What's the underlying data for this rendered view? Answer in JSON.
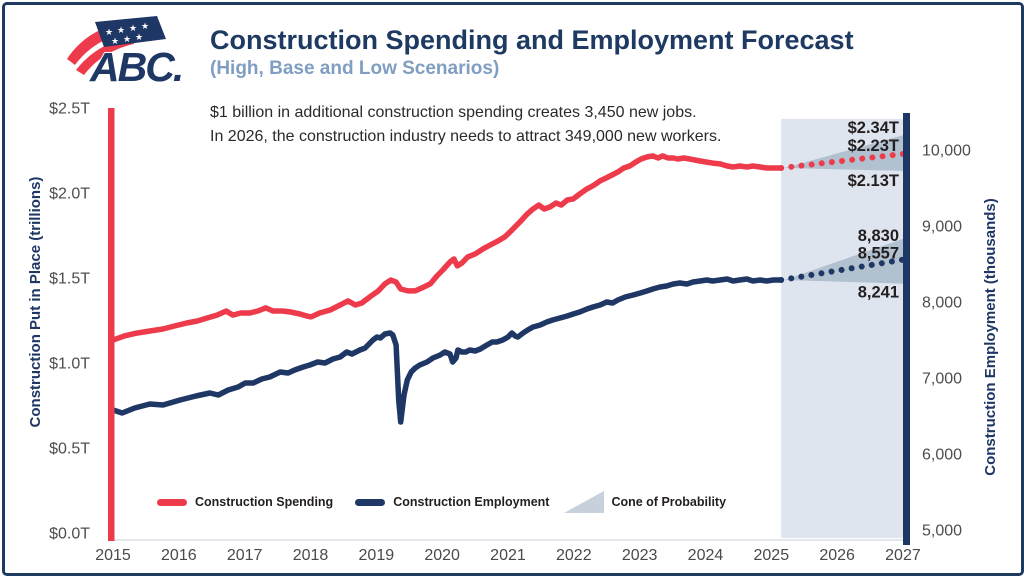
{
  "header": {
    "logo_text": "ABC.",
    "title": "Construction Spending and Employment Forecast",
    "subtitle": "(High, Base and Low Scenarios)"
  },
  "chart_data": {
    "type": "line",
    "title": "Construction Spending and Employment Forecast",
    "subtitle": "(High, Base and Low Scenarios)",
    "annotations": {
      "line1": "$1 billion in additional construction spending creates 3,450 new jobs.",
      "line2": "In 2026, the construction industry needs to attract 349,000 new workers."
    },
    "x_axis": {
      "range": [
        2015,
        2027
      ],
      "ticks": [
        "2015",
        "2016",
        "2017",
        "2018",
        "2019",
        "2020",
        "2021",
        "2022",
        "2023",
        "2024",
        "2025",
        "2026",
        "2027"
      ]
    },
    "y_left": {
      "title": "Construction Put in Place (trillions)",
      "range": [
        0,
        2.5
      ],
      "tick_labels": [
        "$2.5T",
        "$2.0T",
        "$1.5T",
        "$1.0T",
        "$0.5T",
        "$0.0T"
      ],
      "tick_values": [
        2.5,
        2.0,
        1.5,
        1.0,
        0.5,
        0.0
      ]
    },
    "y_right": {
      "title": "Construction Employment (thousands)",
      "range": [
        5000,
        10000
      ],
      "tick_labels": [
        "10,000",
        "9,000",
        "8,000",
        "7,000",
        "6,000",
        "5,000"
      ],
      "tick_values": [
        10000,
        9000,
        8000,
        7000,
        6000,
        5000
      ]
    },
    "legend": [
      {
        "label": "Construction Spending",
        "marker": "line",
        "color": "#ee3b4c"
      },
      {
        "label": "Construction Employment",
        "marker": "line",
        "color": "#1f3765"
      },
      {
        "label": "Cone of Probability",
        "marker": "cone",
        "color": "#c6d1db"
      }
    ],
    "forecast_region": {
      "start": 2025.15,
      "end": 2027
    },
    "series": [
      {
        "name": "Construction Spending",
        "axis": "left",
        "color": "#ee3b4c",
        "line": "solid",
        "points": [
          [
            2015.0,
            1.135
          ],
          [
            2015.18,
            1.16
          ],
          [
            2015.36,
            1.176
          ],
          [
            2015.56,
            1.188
          ],
          [
            2015.76,
            1.2
          ],
          [
            2015.94,
            1.218
          ],
          [
            2016.12,
            1.235
          ],
          [
            2016.28,
            1.247
          ],
          [
            2016.43,
            1.265
          ],
          [
            2016.58,
            1.282
          ],
          [
            2016.72,
            1.306
          ],
          [
            2016.82,
            1.282
          ],
          [
            2016.94,
            1.294
          ],
          [
            2017.08,
            1.294
          ],
          [
            2017.2,
            1.306
          ],
          [
            2017.32,
            1.324
          ],
          [
            2017.43,
            1.306
          ],
          [
            2017.57,
            1.306
          ],
          [
            2017.7,
            1.3
          ],
          [
            2017.84,
            1.288
          ],
          [
            2017.95,
            1.276
          ],
          [
            2018.01,
            1.271
          ],
          [
            2018.14,
            1.294
          ],
          [
            2018.3,
            1.312
          ],
          [
            2018.45,
            1.341
          ],
          [
            2018.57,
            1.365
          ],
          [
            2018.68,
            1.341
          ],
          [
            2018.78,
            1.353
          ],
          [
            2018.9,
            1.388
          ],
          [
            2019.03,
            1.424
          ],
          [
            2019.13,
            1.465
          ],
          [
            2019.22,
            1.488
          ],
          [
            2019.3,
            1.476
          ],
          [
            2019.37,
            1.435
          ],
          [
            2019.48,
            1.424
          ],
          [
            2019.59,
            1.424
          ],
          [
            2019.69,
            1.441
          ],
          [
            2019.82,
            1.465
          ],
          [
            2019.92,
            1.512
          ],
          [
            2020.01,
            1.547
          ],
          [
            2020.12,
            1.594
          ],
          [
            2020.18,
            1.612
          ],
          [
            2020.23,
            1.571
          ],
          [
            2020.3,
            1.588
          ],
          [
            2020.39,
            1.624
          ],
          [
            2020.5,
            1.641
          ],
          [
            2020.62,
            1.671
          ],
          [
            2020.73,
            1.694
          ],
          [
            2020.85,
            1.718
          ],
          [
            2020.95,
            1.741
          ],
          [
            2021.06,
            1.782
          ],
          [
            2021.18,
            1.829
          ],
          [
            2021.29,
            1.876
          ],
          [
            2021.38,
            1.906
          ],
          [
            2021.47,
            1.929
          ],
          [
            2021.55,
            1.906
          ],
          [
            2021.64,
            1.918
          ],
          [
            2021.73,
            1.941
          ],
          [
            2021.81,
            1.929
          ],
          [
            2021.9,
            1.959
          ],
          [
            2021.99,
            1.965
          ],
          [
            2022.09,
            1.994
          ],
          [
            2022.2,
            2.024
          ],
          [
            2022.31,
            2.047
          ],
          [
            2022.4,
            2.071
          ],
          [
            2022.49,
            2.088
          ],
          [
            2022.58,
            2.106
          ],
          [
            2022.67,
            2.124
          ],
          [
            2022.76,
            2.147
          ],
          [
            2022.85,
            2.159
          ],
          [
            2022.94,
            2.182
          ],
          [
            2023.02,
            2.2
          ],
          [
            2023.11,
            2.212
          ],
          [
            2023.2,
            2.218
          ],
          [
            2023.28,
            2.206
          ],
          [
            2023.35,
            2.218
          ],
          [
            2023.43,
            2.206
          ],
          [
            2023.51,
            2.206
          ],
          [
            2023.58,
            2.2
          ],
          [
            2023.67,
            2.206
          ],
          [
            2023.76,
            2.2
          ],
          [
            2023.84,
            2.194
          ],
          [
            2023.92,
            2.188
          ],
          [
            2024.02,
            2.182
          ],
          [
            2024.11,
            2.176
          ],
          [
            2024.22,
            2.171
          ],
          [
            2024.33,
            2.159
          ],
          [
            2024.42,
            2.153
          ],
          [
            2024.52,
            2.159
          ],
          [
            2024.63,
            2.153
          ],
          [
            2024.72,
            2.159
          ],
          [
            2024.83,
            2.153
          ],
          [
            2024.93,
            2.147
          ],
          [
            2025.03,
            2.147
          ],
          [
            2025.15,
            2.147
          ]
        ]
      },
      {
        "name": "Construction Spending Forecast (Base)",
        "axis": "left",
        "color": "#ee3b4c",
        "line": "dotted",
        "points": [
          [
            2025.15,
            2.147
          ],
          [
            2027.0,
            2.23
          ]
        ]
      },
      {
        "name": "Construction Employment",
        "axis": "right",
        "color": "#1f3765",
        "line": "solid",
        "points": [
          [
            2015.0,
            6579
          ],
          [
            2015.14,
            6539
          ],
          [
            2015.33,
            6605
          ],
          [
            2015.56,
            6658
          ],
          [
            2015.76,
            6645
          ],
          [
            2016.02,
            6711
          ],
          [
            2016.26,
            6763
          ],
          [
            2016.47,
            6803
          ],
          [
            2016.6,
            6776
          ],
          [
            2016.75,
            6842
          ],
          [
            2016.9,
            6882
          ],
          [
            2017.01,
            6934
          ],
          [
            2017.13,
            6934
          ],
          [
            2017.26,
            6987
          ],
          [
            2017.38,
            7013
          ],
          [
            2017.54,
            7079
          ],
          [
            2017.66,
            7066
          ],
          [
            2017.76,
            7105
          ],
          [
            2017.89,
            7145
          ],
          [
            2017.99,
            7171
          ],
          [
            2018.11,
            7211
          ],
          [
            2018.22,
            7197
          ],
          [
            2018.34,
            7250
          ],
          [
            2018.45,
            7276
          ],
          [
            2018.55,
            7342
          ],
          [
            2018.63,
            7316
          ],
          [
            2018.75,
            7368
          ],
          [
            2018.83,
            7395
          ],
          [
            2018.95,
            7500
          ],
          [
            2019.01,
            7539
          ],
          [
            2019.06,
            7526
          ],
          [
            2019.13,
            7579
          ],
          [
            2019.21,
            7592
          ],
          [
            2019.25,
            7566
          ],
          [
            2019.3,
            7434
          ],
          [
            2019.34,
            6711
          ],
          [
            2019.37,
            6421
          ],
          [
            2019.42,
            6776
          ],
          [
            2019.47,
            6974
          ],
          [
            2019.53,
            7079
          ],
          [
            2019.59,
            7132
          ],
          [
            2019.66,
            7171
          ],
          [
            2019.77,
            7211
          ],
          [
            2019.86,
            7263
          ],
          [
            2019.97,
            7303
          ],
          [
            2020.04,
            7342
          ],
          [
            2020.12,
            7316
          ],
          [
            2020.16,
            7211
          ],
          [
            2020.21,
            7263
          ],
          [
            2020.24,
            7368
          ],
          [
            2020.3,
            7342
          ],
          [
            2020.36,
            7342
          ],
          [
            2020.42,
            7368
          ],
          [
            2020.5,
            7355
          ],
          [
            2020.58,
            7382
          ],
          [
            2020.68,
            7434
          ],
          [
            2020.76,
            7474
          ],
          [
            2020.83,
            7474
          ],
          [
            2020.92,
            7500
          ],
          [
            2021.0,
            7539
          ],
          [
            2021.06,
            7592
          ],
          [
            2021.11,
            7553
          ],
          [
            2021.15,
            7539
          ],
          [
            2021.23,
            7592
          ],
          [
            2021.3,
            7632
          ],
          [
            2021.38,
            7671
          ],
          [
            2021.49,
            7697
          ],
          [
            2021.59,
            7737
          ],
          [
            2021.68,
            7763
          ],
          [
            2021.79,
            7789
          ],
          [
            2021.9,
            7816
          ],
          [
            2021.99,
            7842
          ],
          [
            2022.09,
            7868
          ],
          [
            2022.2,
            7908
          ],
          [
            2022.29,
            7934
          ],
          [
            2022.4,
            7961
          ],
          [
            2022.5,
            8000
          ],
          [
            2022.59,
            7987
          ],
          [
            2022.67,
            8026
          ],
          [
            2022.78,
            8066
          ],
          [
            2022.9,
            8092
          ],
          [
            2023.01,
            8118
          ],
          [
            2023.11,
            8145
          ],
          [
            2023.2,
            8171
          ],
          [
            2023.31,
            8197
          ],
          [
            2023.41,
            8211
          ],
          [
            2023.51,
            8237
          ],
          [
            2023.61,
            8250
          ],
          [
            2023.72,
            8237
          ],
          [
            2023.81,
            8263
          ],
          [
            2023.92,
            8276
          ],
          [
            2024.02,
            8289
          ],
          [
            2024.11,
            8276
          ],
          [
            2024.22,
            8289
          ],
          [
            2024.33,
            8303
          ],
          [
            2024.42,
            8276
          ],
          [
            2024.52,
            8289
          ],
          [
            2024.63,
            8303
          ],
          [
            2024.72,
            8276
          ],
          [
            2024.83,
            8289
          ],
          [
            2024.93,
            8276
          ],
          [
            2025.03,
            8289
          ],
          [
            2025.15,
            8290
          ]
        ]
      },
      {
        "name": "Construction Employment Forecast (Base)",
        "axis": "right",
        "color": "#1f3765",
        "line": "dotted",
        "points": [
          [
            2025.15,
            8290
          ],
          [
            2027.0,
            8557
          ]
        ]
      }
    ],
    "cones": [
      {
        "name": "Spending Cone of Probability",
        "axis": "left",
        "apex": [
          2025.2,
          2.147
        ],
        "end": 2027.0,
        "high": 2.34,
        "low": 2.13,
        "color": "#b2c1cf"
      },
      {
        "name": "Employment Cone of Probability",
        "axis": "right",
        "apex": [
          2025.2,
          8290
        ],
        "end": 2027.0,
        "high": 8830,
        "low": 8241,
        "color": "#b2c1cf"
      }
    ],
    "forecast_labels": [
      {
        "text": "$2.34T",
        "axis": "left",
        "value": 2.34,
        "dy": -2
      },
      {
        "text": "$2.23T",
        "axis": "left",
        "value": 2.23,
        "dy": -3
      },
      {
        "text": "$2.13T",
        "axis": "left",
        "value": 2.13,
        "dy": 15
      },
      {
        "text": "8,830",
        "axis": "right",
        "value": 8830,
        "dy": 2
      },
      {
        "text": "8,557",
        "axis": "right",
        "value": 8557,
        "dy": -1
      },
      {
        "text": "8,241",
        "axis": "right",
        "value": 8241,
        "dy": 14
      }
    ],
    "colors": {
      "spending": "#ee3b4c",
      "employment": "#1f3765",
      "cone": "#b2c1cf",
      "forecast_band": "#dfe5ee"
    }
  }
}
